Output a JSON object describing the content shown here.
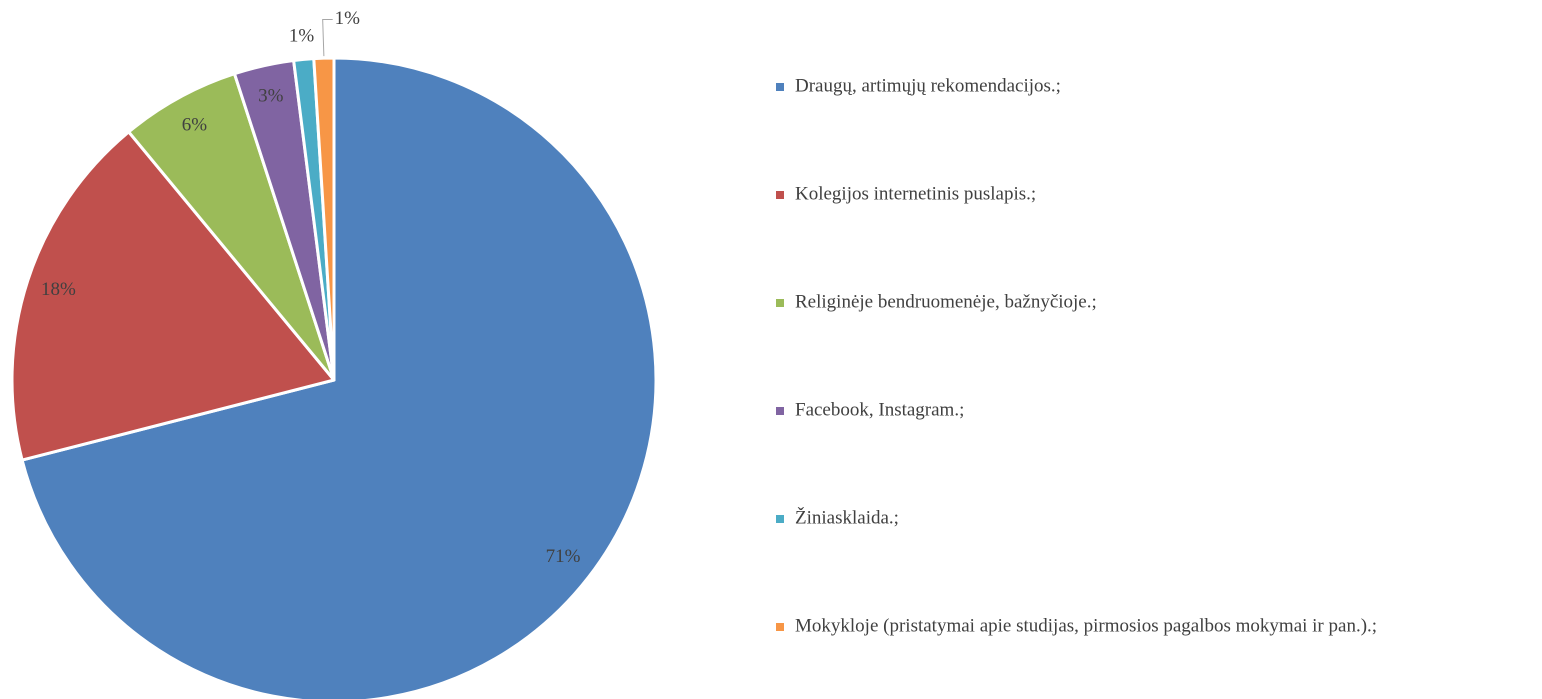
{
  "chart_data": {
    "type": "pie",
    "categories": [
      "Draugų, artimųjų rekomendacijos.;",
      "Kolegijos internetinis puslapis.;",
      "Religinėje bendruomenėje, bažnyčioje.;",
      "Facebook, Instagram.;",
      "Žiniasklaida.;",
      "Mokykloje (pristatymai apie studijas, pirmosios pagalbos mokymai ir pan.).;"
    ],
    "values": [
      71,
      18,
      6,
      3,
      1,
      1
    ],
    "value_labels": [
      "71%",
      "18%",
      "6%",
      "3%",
      "1%",
      "1%"
    ],
    "colors": [
      "#4f81bd",
      "#c0504d",
      "#9bbb59",
      "#8064a2",
      "#4bacc6",
      "#f79646"
    ],
    "legend": "right"
  }
}
